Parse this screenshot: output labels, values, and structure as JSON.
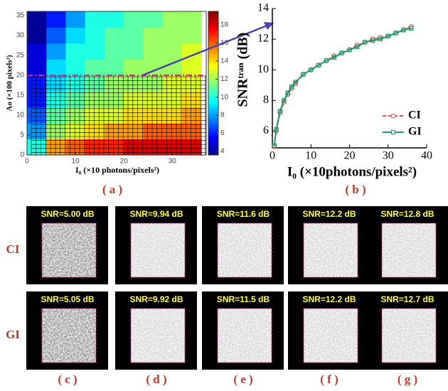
{
  "chart_data": [
    {
      "type": "heatmap",
      "xlabel": "I₀ (×10 photons/pixels²)",
      "ylabel": "Ao (×100 pixels²)",
      "x_edges": [
        0,
        4,
        8,
        12,
        16,
        20,
        24,
        28,
        32,
        36
      ],
      "y_edges": [
        0,
        4,
        8,
        12,
        16,
        20,
        24,
        28,
        32,
        36
      ],
      "z": [
        [
          10,
          15,
          16,
          17,
          17,
          18,
          18,
          18,
          18
        ],
        [
          8,
          12,
          13,
          14,
          15,
          15,
          16,
          16,
          16
        ],
        [
          7,
          11,
          12,
          13,
          13,
          14,
          14,
          14,
          15
        ],
        [
          6,
          10,
          11,
          12,
          12,
          13,
          13,
          13,
          14
        ],
        [
          6,
          9,
          10,
          11,
          12,
          12,
          12,
          13,
          13
        ],
        [
          5,
          9,
          10,
          11,
          11,
          12,
          12,
          12,
          13
        ],
        [
          5,
          8,
          10,
          10,
          11,
          11,
          12,
          12,
          13
        ],
        [
          4,
          7,
          9,
          10,
          11,
          11,
          12,
          12,
          12
        ],
        [
          4,
          6,
          8,
          10,
          10,
          11,
          11,
          12,
          12
        ]
      ],
      "xlim": [
        0,
        37
      ],
      "xticks": [
        0,
        10,
        20,
        30
      ],
      "ylim": [
        0,
        36
      ],
      "yticks": [
        0,
        5,
        10,
        15,
        20,
        25,
        30,
        35
      ],
      "clim": [
        3.6,
        19.5
      ],
      "cticks": [
        4,
        6,
        8,
        10,
        12,
        14,
        16,
        18
      ],
      "caption": "( a )"
    },
    {
      "type": "line",
      "xlabel": "I₀ (×10photons/pixels²)",
      "ylabel": "SNRᵗʳᵃⁿ (dB)",
      "x": [
        0.5,
        1,
        2,
        3,
        4,
        5,
        6,
        8,
        10,
        12,
        14,
        16,
        18,
        20,
        22,
        24,
        26,
        28,
        30,
        32,
        34,
        36
      ],
      "series": [
        {
          "name": "CI",
          "color": "#d9534f",
          "values": [
            5.0,
            6.0,
            7.2,
            7.9,
            8.4,
            8.8,
            9.1,
            9.7,
            10.0,
            10.3,
            10.6,
            10.9,
            11.1,
            11.3,
            11.6,
            11.8,
            12.0,
            12.1,
            12.2,
            12.4,
            12.6,
            12.8
          ]
        },
        {
          "name": "GI",
          "color": "#1a9a6a",
          "values": [
            5.05,
            6.1,
            7.3,
            8.0,
            8.5,
            8.9,
            9.2,
            9.7,
            10.0,
            10.3,
            10.6,
            10.8,
            11.1,
            11.3,
            11.5,
            11.8,
            11.9,
            12.0,
            12.2,
            12.4,
            12.6,
            12.7
          ]
        }
      ],
      "xlim": [
        0,
        40
      ],
      "xticks": [
        0,
        10,
        20,
        30,
        40
      ],
      "ylim": [
        4.9,
        14
      ],
      "yticks": [
        6,
        8,
        10,
        12,
        14
      ],
      "legend": "lower right",
      "caption": "( b )"
    }
  ],
  "image_grid": {
    "row_labels": [
      "CI",
      "GI"
    ],
    "snr_labels": [
      [
        "SNR=5.00 dB",
        "SNR=9.94 dB",
        "SNR=11.6 dB",
        "SNR=12.2 dB",
        "SNR=12.8 dB"
      ],
      [
        "SNR=5.05 dB",
        "SNR=9.92 dB",
        "SNR=11.5 dB",
        "SNR=12.2 dB",
        "SNR=12.7 dB"
      ]
    ],
    "captions": [
      "( c )",
      "( d )",
      "( e )",
      "( f )",
      "( g )"
    ]
  }
}
